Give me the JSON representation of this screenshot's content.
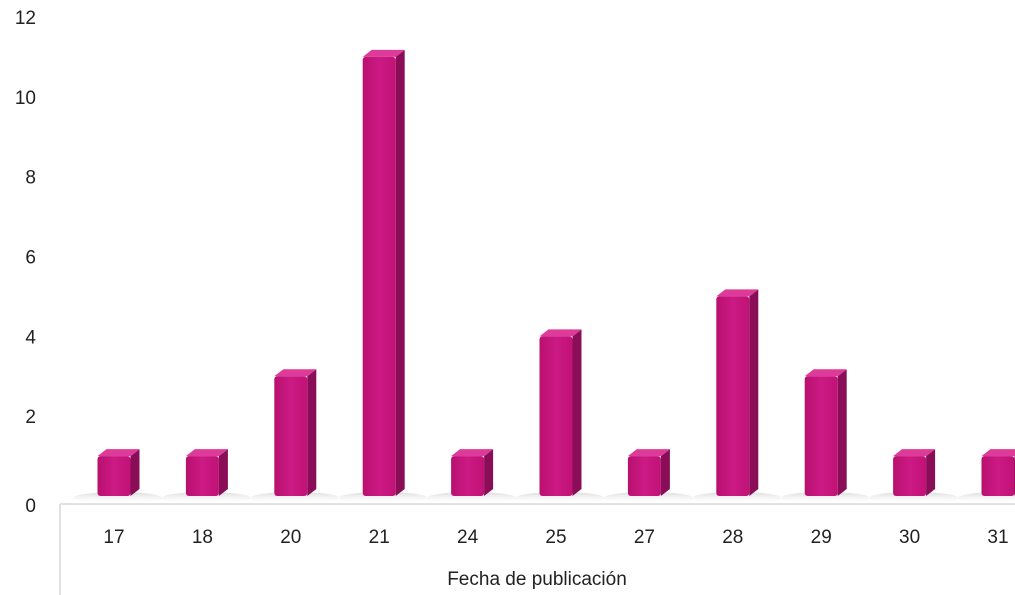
{
  "chart_data": {
    "type": "bar",
    "style": "3d-column",
    "title": "",
    "xlabel": "Fecha de publicación",
    "ylabel": "",
    "categories": [
      "17",
      "18",
      "20",
      "21",
      "24",
      "25",
      "27",
      "28",
      "29",
      "30",
      "31"
    ],
    "values": [
      1,
      1,
      3,
      11,
      1,
      4,
      1,
      5,
      3,
      1,
      1
    ],
    "ylim": [
      0,
      12
    ],
    "yticks": [
      "0",
      "2",
      "4",
      "6",
      "8",
      "10",
      "12"
    ],
    "grid": false,
    "legend": "none",
    "colors": {
      "bar_front": "#c8157e",
      "bar_side": "#8a0e57",
      "bar_top": "#de3a9a",
      "axis": "#d0d0d0",
      "text": "#222222"
    }
  }
}
